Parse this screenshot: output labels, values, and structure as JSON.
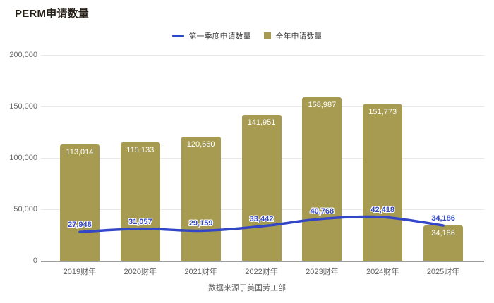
{
  "title": "PERM申请数量",
  "source_note": "数据来源于美国劳工部",
  "legend": {
    "items": [
      {
        "label": "第一季度申请数量",
        "swatch": "line-dash",
        "color": "#3346C8"
      },
      {
        "label": "全年申请数量",
        "swatch": "square",
        "color": "#A79B52"
      }
    ]
  },
  "y_axis": {
    "tick_labels": [
      "0",
      "50,000",
      "100,000",
      "150,000",
      "200,000"
    ],
    "min": 0,
    "max": 200000
  },
  "colors": {
    "bar": "#A79B52",
    "line": "#3346C8",
    "line_label": "#3346C8",
    "bar_label": "#FFFFFF",
    "grid": "#E8E8E8",
    "axis": "#9E9E9E",
    "tick_text": "#6B6B6B",
    "title_text": "#241E16"
  },
  "chart_data": {
    "type": "bar",
    "title": "PERM申请数量",
    "categories": [
      "2019财年",
      "2020财年",
      "2021财年",
      "2022财年",
      "2023财年",
      "2024财年",
      "2025财年"
    ],
    "series": [
      {
        "name": "第一季度申请数量",
        "type": "line",
        "color": "#3346C8",
        "values": [
          27948,
          31057,
          29159,
          33442,
          40768,
          42418,
          34186
        ]
      },
      {
        "name": "全年申请数量",
        "type": "bar",
        "color": "#A79B52",
        "values": [
          113014,
          115133,
          120660,
          141951,
          158987,
          151773,
          34186
        ]
      }
    ],
    "ylim": [
      0,
      200000
    ],
    "grid": true,
    "legend_position": "top",
    "data_labels": true
  }
}
